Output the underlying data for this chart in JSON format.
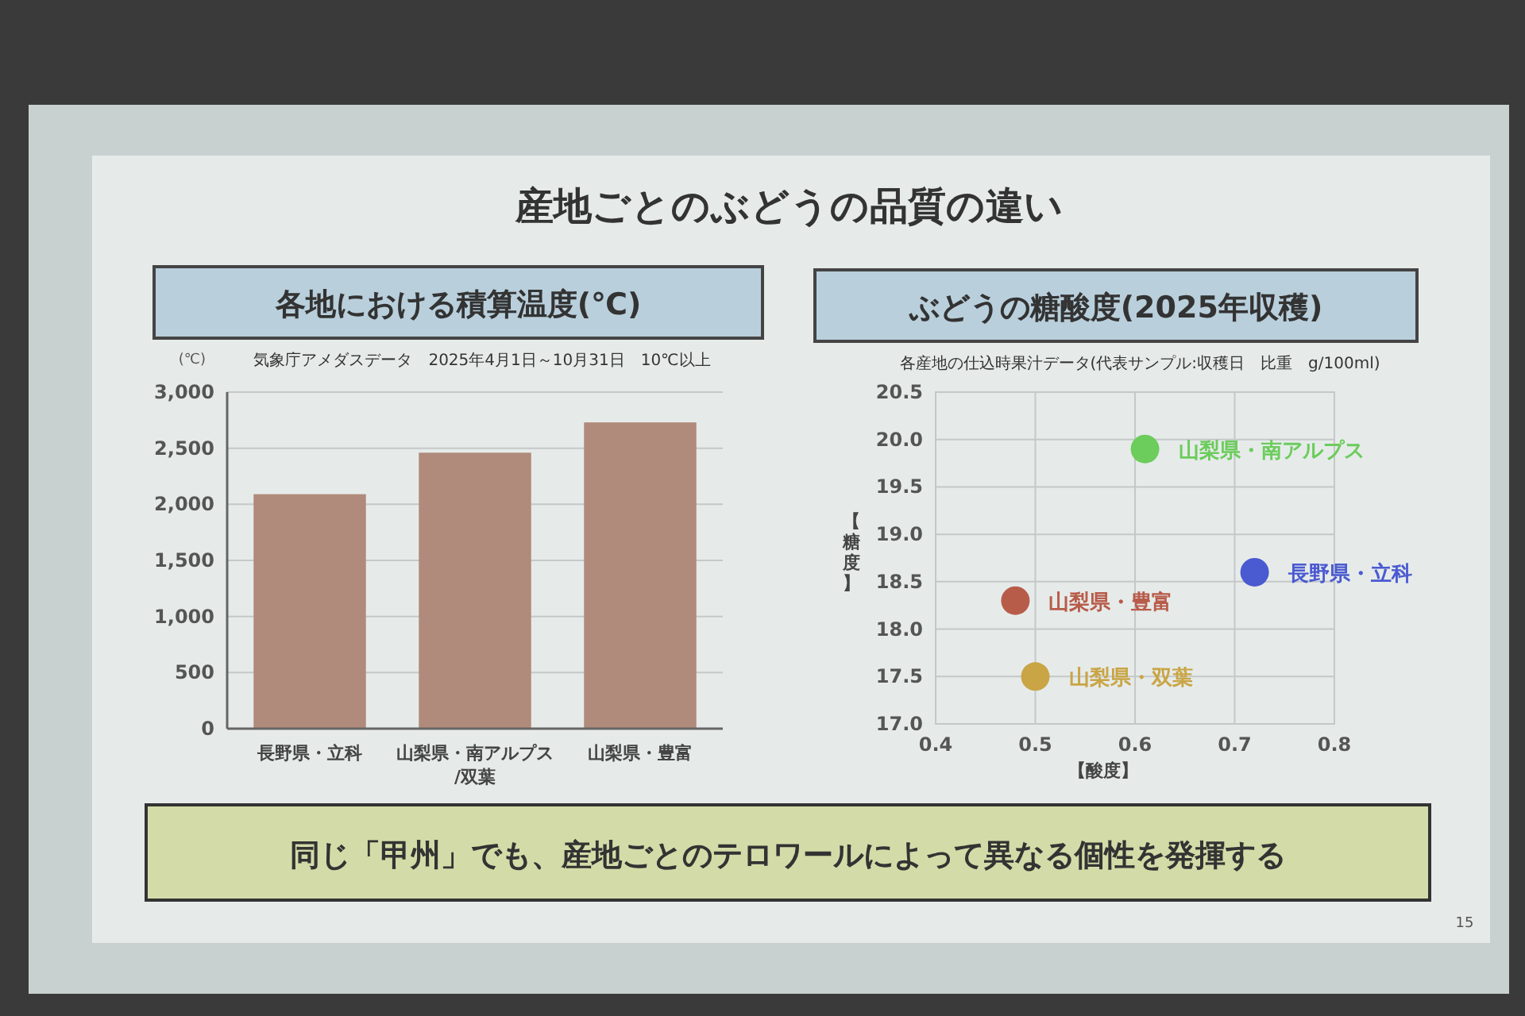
{
  "chart_data": [
    {
      "type": "other",
      "title": "産地ごとのぶどうの品質の違い",
      "annotations": [
        "同じ「甲州」でも、産地ごとのテロワールによって異なる個性を発揮する",
        "15"
      ]
    },
    {
      "type": "bar",
      "title": "各地における積算温度(℃)",
      "subtitle": "気象庁アメダスデータ　2025年4月1日～10月31日　10℃以上",
      "ylabel": "(℃)",
      "categories": [
        "長野県・立科",
        "山梨県・南アルプス/双葉",
        "山梨県・豊富"
      ],
      "values": [
        2090,
        2460,
        2730
      ],
      "color": "#b08a7a",
      "ylim": [
        0,
        3000
      ],
      "yticks": [
        0,
        500,
        {
          "value": 1000,
          "label": "1,000"
        },
        {
          "value": 1500,
          "label": "1,500"
        },
        {
          "value": 2000,
          "label": "2,000"
        },
        {
          "value": 2500,
          "label": "2,500"
        },
        {
          "value": 3000,
          "label": "3,000"
        }
      ],
      "grid": "y"
    },
    {
      "type": "scatter",
      "title": "ぶどうの糖酸度(2025年収穫)",
      "subtitle": "各産地の仕込時果汁データ(代表サンプル:収穫日　比重　g/100ml)",
      "xlabel": "【酸度】",
      "ylabel": "【糖度】",
      "series": [
        {
          "name": "山梨県・南アルプス",
          "color": "#6ccc5c",
          "x": [
            0.61
          ],
          "values": [
            19.9
          ]
        },
        {
          "name": "長野県・立科",
          "color": "#4a5ad0",
          "x": [
            0.72
          ],
          "values": [
            18.6
          ]
        },
        {
          "name": "山梨県・豊富",
          "color": "#b85c4a",
          "x": [
            0.48
          ],
          "values": [
            18.3
          ]
        },
        {
          "name": "山梨県・双葉",
          "color": "#c9a545",
          "x": [
            0.5
          ],
          "values": [
            17.5
          ]
        }
      ],
      "xlim": [
        0.4,
        0.8
      ],
      "xticks": [
        0.4,
        0.5,
        0.6,
        0.7,
        0.8
      ],
      "ylim": [
        17,
        20.5
      ],
      "yticks": [
        {
          "value": 17,
          "label": "17.0"
        },
        17.5,
        {
          "value": 18,
          "label": "18.0"
        },
        18.5,
        {
          "value": 19,
          "label": "19.0"
        },
        19.5,
        {
          "value": 20,
          "label": "20.0"
        },
        20.5
      ],
      "grid": true,
      "marker": "circle"
    }
  ]
}
